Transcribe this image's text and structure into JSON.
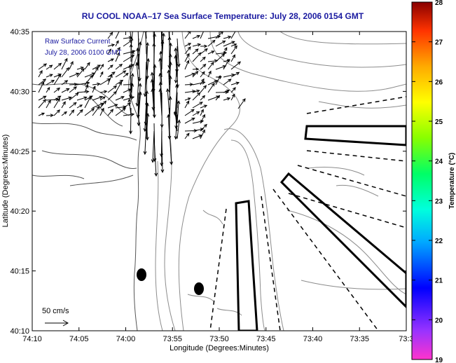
{
  "header": {
    "title": "RU COOL  NOAA–17  Sea Surface Temperature:  July 28, 2006 0154 GMT"
  },
  "legend": {
    "line1": "Raw Surface Current",
    "line2": "July 28, 2006 0100 GMT",
    "scale_label": "50 cm/s"
  },
  "chart_data": {
    "type": "map",
    "xlabel": "Longitude (Degrees:Minutes)",
    "ylabel": "Latitude (Degrees:Minutes)",
    "x_ticks": [
      "74:10",
      "74:05",
      "74:00",
      "73:55",
      "73:50",
      "73:45",
      "73:40",
      "73:35",
      "73:3"
    ],
    "y_ticks": [
      "40:35",
      "40:30",
      "40:25",
      "40:20",
      "40:15",
      "40:10"
    ],
    "colorbar": {
      "label": "Temperature (°C)",
      "min": 19,
      "max": 28,
      "ticks": [
        "28",
        "27",
        "26",
        "25",
        "24",
        "23",
        "22",
        "21",
        "20",
        "19"
      ]
    },
    "features": [
      "coastline",
      "bathymetry-contours",
      "surface-current-vectors",
      "survey-boxes",
      "survey-transects",
      "station-markers"
    ]
  },
  "colors": {
    "title": "#1a1aa0",
    "contour": "#888888",
    "vectors": "#000000"
  }
}
